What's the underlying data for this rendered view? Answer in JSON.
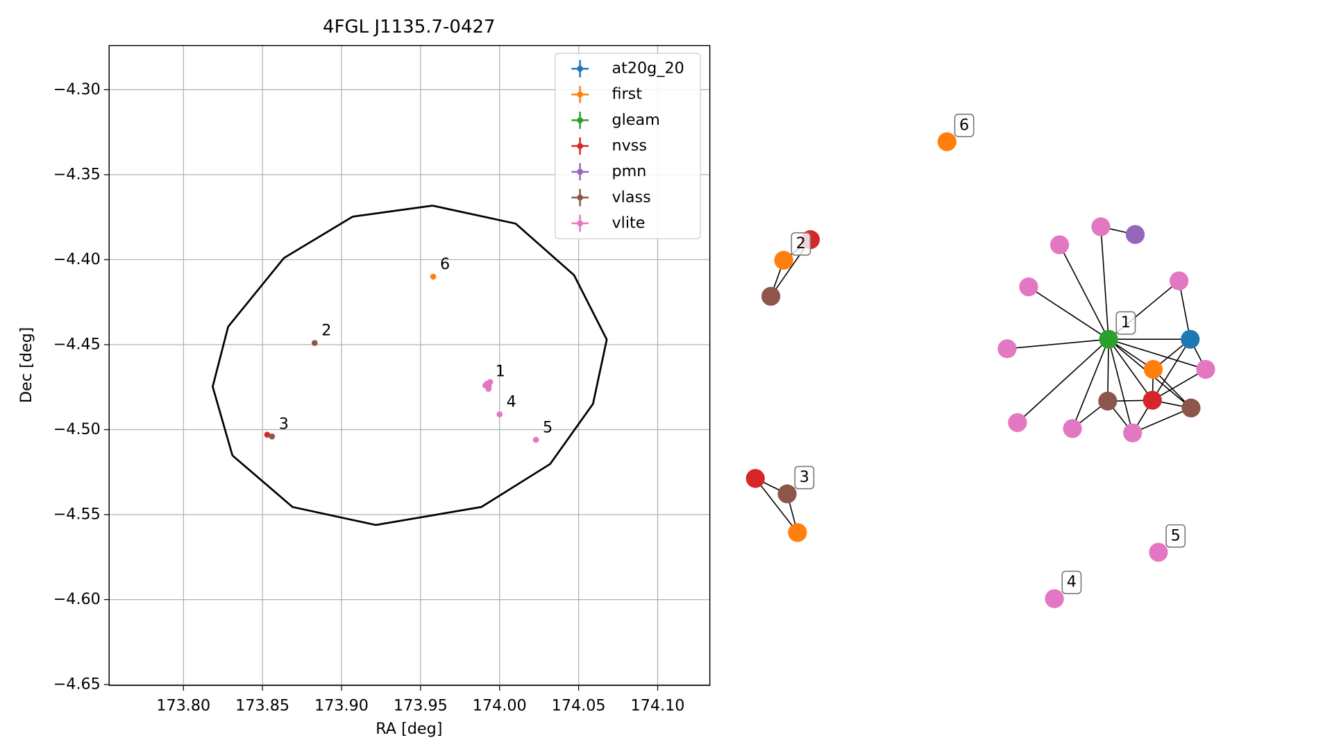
{
  "chart_data": [
    {
      "type": "scatter",
      "title": "4FGL J1135.7-0427",
      "xlabel": "RA [deg]",
      "ylabel": "Dec [deg]",
      "xlim": [
        173.753,
        174.133
      ],
      "ylim": [
        -4.6505,
        -4.274
      ],
      "xticks": [
        {
          "value": 173.8,
          "label": "173.80"
        },
        {
          "value": 173.85,
          "label": "173.85"
        },
        {
          "value": 173.9,
          "label": "173.90"
        },
        {
          "value": 173.95,
          "label": "173.95"
        },
        {
          "value": 174.0,
          "label": "174.00"
        },
        {
          "value": 174.05,
          "label": "174.05"
        },
        {
          "value": 174.1,
          "label": "174.10"
        }
      ],
      "yticks": [
        {
          "value": -4.3,
          "label": "−4.30"
        },
        {
          "value": -4.35,
          "label": "−4.35"
        },
        {
          "value": -4.4,
          "label": "−4.40"
        },
        {
          "value": -4.45,
          "label": "−4.45"
        },
        {
          "value": -4.5,
          "label": "−4.50"
        },
        {
          "value": -4.55,
          "label": "−4.55"
        },
        {
          "value": -4.6,
          "label": "−4.60"
        },
        {
          "value": -4.65,
          "label": "−4.65"
        }
      ],
      "grid": true,
      "legend": "upper right",
      "series": [
        {
          "name": "at20g_20",
          "color": "#1f77b4",
          "x": [
            173.993
          ],
          "values": [
            -4.474
          ]
        },
        {
          "name": "first",
          "color": "#ff7f0e",
          "x": [
            173.958,
            173.993
          ],
          "values": [
            -4.41,
            -4.474
          ]
        },
        {
          "name": "gleam",
          "color": "#2ca02c",
          "x": [
            173.993
          ],
          "values": [
            -4.474
          ]
        },
        {
          "name": "nvss",
          "color": "#d62728",
          "x": [
            173.853,
            173.992
          ],
          "values": [
            -4.503,
            -4.474
          ]
        },
        {
          "name": "pmn",
          "color": "#9467bd",
          "x": [
            173.993
          ],
          "values": [
            -4.474
          ]
        },
        {
          "name": "vlass",
          "color": "#8c564b",
          "x": [
            173.883,
            173.856,
            173.992,
            173.993
          ],
          "values": [
            -4.449,
            -4.504,
            -4.474,
            -4.475
          ]
        },
        {
          "name": "vlite",
          "color": "#e377c2",
          "x": [
            173.992,
            173.993,
            173.994,
            173.991,
            173.993,
            174.0,
            174.023
          ],
          "values": [
            -4.473,
            -4.476,
            -4.472,
            -4.474,
            -4.475,
            -4.491,
            -4.506
          ]
        }
      ],
      "ellipse": {
        "color": "#000000",
        "x": [
          173.9576,
          174.0102,
          174.0471,
          174.0678,
          174.0591,
          174.032,
          173.9885,
          173.9217,
          173.869,
          173.831,
          173.8185,
          173.8283,
          173.8636,
          173.907,
          173.9576
        ],
        "values": [
          -4.3682,
          -4.3788,
          -4.4091,
          -4.447,
          -4.4848,
          -4.5202,
          -4.5455,
          -4.5561,
          -4.5455,
          -4.5152,
          -4.4747,
          -4.4394,
          -4.399,
          -4.3747,
          -4.3682
        ]
      },
      "annotations": [
        {
          "text": "1",
          "x": 173.993,
          "y": -4.473
        },
        {
          "text": "2",
          "x": 173.883,
          "y": -4.449
        },
        {
          "text": "3",
          "x": 173.856,
          "y": -4.504
        },
        {
          "text": "4",
          "x": 174.0,
          "y": -4.491
        },
        {
          "text": "5",
          "x": 174.023,
          "y": -4.506
        },
        {
          "text": "6",
          "x": 173.958,
          "y": -4.41
        }
      ]
    },
    {
      "type": "graph",
      "nodes": [
        {
          "color": "#ff7f0e",
          "label": "6"
        },
        {
          "color": "#d62728"
        },
        {
          "color": "#ff7f0e",
          "label": "2"
        },
        {
          "color": "#8c564b"
        },
        {
          "color": "#d62728"
        },
        {
          "color": "#8c564b",
          "label": "3"
        },
        {
          "color": "#ff7f0e"
        },
        {
          "color": "#2ca02c",
          "label": "1"
        },
        {
          "color": "#9467bd"
        },
        {
          "color": "#e377c2"
        },
        {
          "color": "#e377c2"
        },
        {
          "color": "#e377c2"
        },
        {
          "color": "#e377c2"
        },
        {
          "color": "#1f77b4"
        },
        {
          "color": "#e377c2"
        },
        {
          "color": "#ff7f0e"
        },
        {
          "color": "#e377c2"
        },
        {
          "color": "#8c564b"
        },
        {
          "color": "#d62728"
        },
        {
          "color": "#8c564b"
        },
        {
          "color": "#e377c2"
        },
        {
          "color": "#e377c2"
        },
        {
          "color": "#e377c2"
        },
        {
          "color": "#e377c2",
          "label": "4"
        },
        {
          "color": "#e377c2",
          "label": "5"
        }
      ]
    }
  ]
}
